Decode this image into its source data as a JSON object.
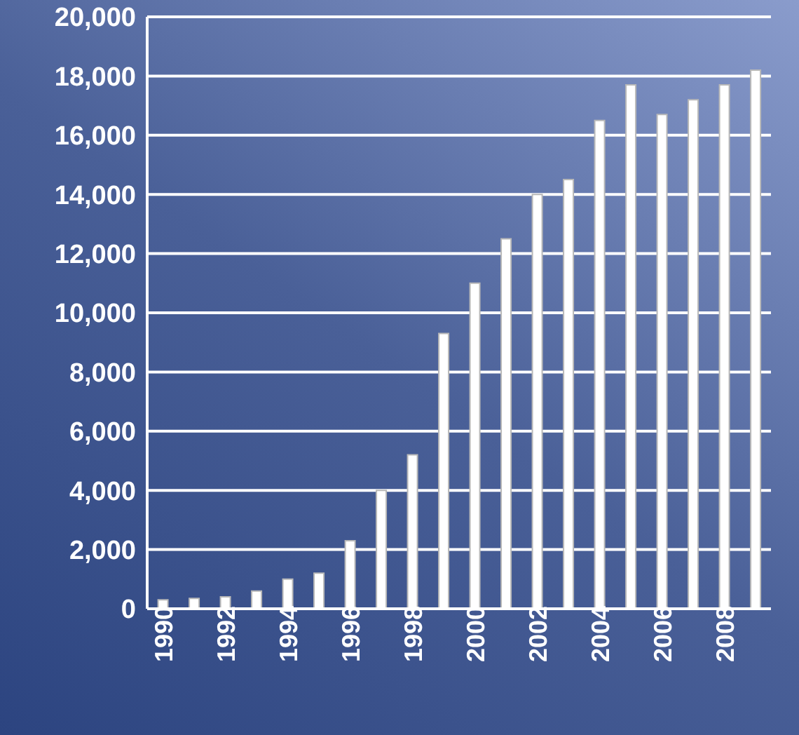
{
  "chart_data": {
    "type": "bar",
    "categories": [
      "1990",
      null,
      "1992",
      null,
      "1994",
      null,
      "1996",
      null,
      "1998",
      null,
      "2000",
      null,
      "2002",
      null,
      "2004",
      null,
      "2006",
      null,
      "2008",
      null
    ],
    "values": [
      300,
      350,
      400,
      600,
      1000,
      1200,
      2300,
      4000,
      5200,
      9300,
      11000,
      12500,
      14000,
      14500,
      16500,
      17700,
      16700,
      17200,
      17700,
      18200
    ],
    "color": "#ffffff",
    "ylim": [
      0,
      20000
    ],
    "yticks": [
      {
        "value": 0,
        "label": "0"
      },
      {
        "value": 2000,
        "label": "2,000"
      },
      {
        "value": 4000,
        "label": "4,000"
      },
      {
        "value": 6000,
        "label": "6,000"
      },
      {
        "value": 8000,
        "label": "8,000"
      },
      {
        "value": 10000,
        "label": "10,000"
      },
      {
        "value": 12000,
        "label": "12,000"
      },
      {
        "value": 14000,
        "label": "14,000"
      },
      {
        "value": 16000,
        "label": "16,000"
      },
      {
        "value": 18000,
        "label": "18,000"
      },
      {
        "value": 20000,
        "label": "20,000"
      }
    ],
    "grid": "y"
  }
}
